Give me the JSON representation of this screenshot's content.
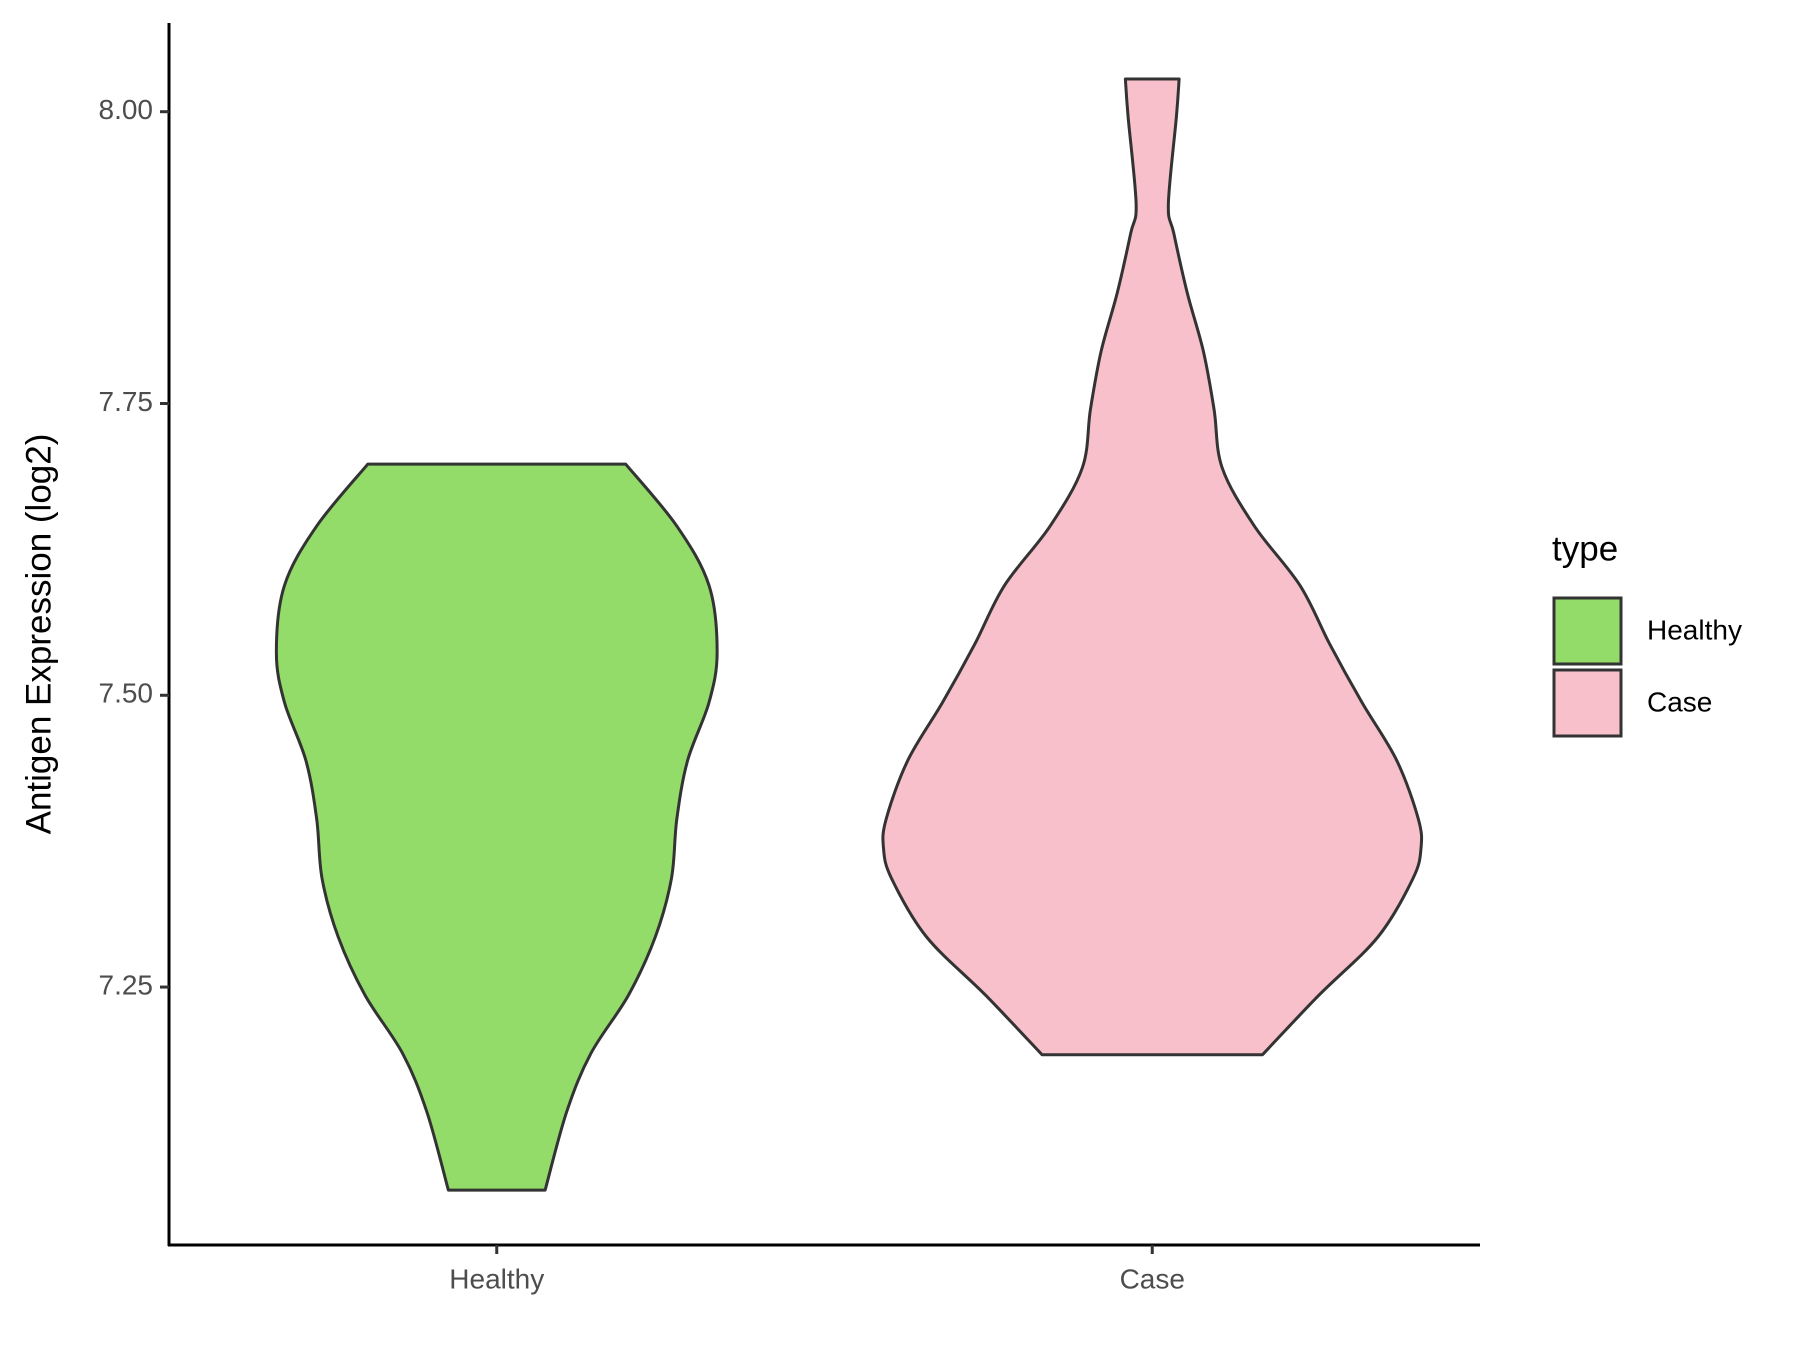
{
  "chart_data": {
    "type": "violin",
    "ylabel": "Antigen Expression (log2)",
    "legend_title": "type",
    "categories": [
      "Healthy",
      "Case"
    ],
    "series": [
      {
        "name": "Healthy",
        "color": "#93dc6a",
        "y": [
          7.698,
          7.645,
          7.594,
          7.537,
          7.494,
          7.444,
          7.394,
          7.343,
          7.293,
          7.243,
          7.193,
          7.143,
          7.076
        ],
        "width": [
          0.48,
          0.67,
          0.79,
          0.82,
          0.79,
          0.71,
          0.67,
          0.65,
          0.59,
          0.49,
          0.35,
          0.26,
          0.18
        ]
      },
      {
        "name": "Case",
        "color": "#f7c0cb",
        "y": [
          8.028,
          7.996,
          7.921,
          7.896,
          7.845,
          7.795,
          7.745,
          7.695,
          7.645,
          7.594,
          7.544,
          7.494,
          7.444,
          7.394,
          7.369,
          7.343,
          7.293,
          7.243,
          7.192
        ],
        "width": [
          0.1,
          0.09,
          0.06,
          0.08,
          0.13,
          0.19,
          0.23,
          0.26,
          0.38,
          0.55,
          0.66,
          0.78,
          0.91,
          0.99,
          1.0,
          0.97,
          0.84,
          0.62,
          0.41
        ]
      }
    ],
    "ylim": [
      7.029,
      8.076
    ],
    "yticks": [
      {
        "value": 7.25,
        "label": "7.25"
      },
      {
        "value": 7.5,
        "label": "7.50"
      },
      {
        "value": 7.75,
        "label": "7.75"
      },
      {
        "value": 8,
        "label": "8.00"
      }
    ]
  }
}
